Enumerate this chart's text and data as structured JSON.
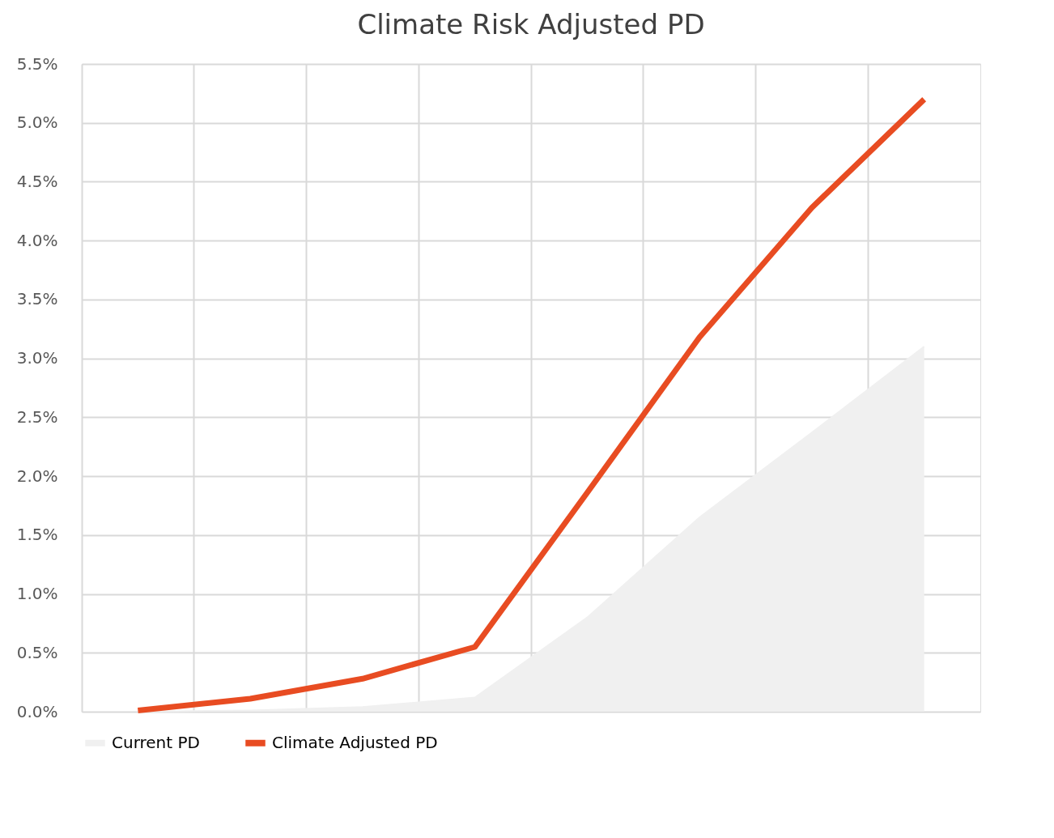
{
  "chart_data": {
    "type": "line",
    "title": "Climate Risk Adjusted PD",
    "categories": [
      null,
      null,
      null,
      null,
      null,
      null,
      null,
      null
    ],
    "series": [
      {
        "name": "Current PD",
        "type": "area",
        "color": "#f0f0f0",
        "values": [
          0.0,
          0.01,
          0.04,
          0.12,
          0.8,
          1.65,
          2.37,
          3.1
        ]
      },
      {
        "name": "Climate Adjusted PD",
        "color": "#e84c22",
        "values": [
          0.01,
          0.11,
          0.28,
          0.55,
          1.86,
          3.18,
          4.28,
          5.2
        ]
      }
    ],
    "ylim": [
      0,
      5.5
    ],
    "yticks": [
      {
        "value": 0,
        "label": "0.0%"
      },
      {
        "value": 0.5,
        "label": "0.5%"
      },
      {
        "value": 1,
        "label": "1.0%"
      },
      {
        "value": 1.5,
        "label": "1.5%"
      },
      {
        "value": 2,
        "label": "2.0%"
      },
      {
        "value": 2.5,
        "label": "2.5%"
      },
      {
        "value": 3,
        "label": "3.0%"
      },
      {
        "value": 3.5,
        "label": "3.5%"
      },
      {
        "value": 4,
        "label": "4.0%"
      },
      {
        "value": 4.5,
        "label": "4.5%"
      },
      {
        "value": 5,
        "label": "5.0%"
      },
      {
        "value": 5.5,
        "label": "5.5%"
      }
    ],
    "grid": true,
    "legend": "bottom",
    "tick_labels": "y",
    "marker": "none",
    "line_style": "solid"
  }
}
